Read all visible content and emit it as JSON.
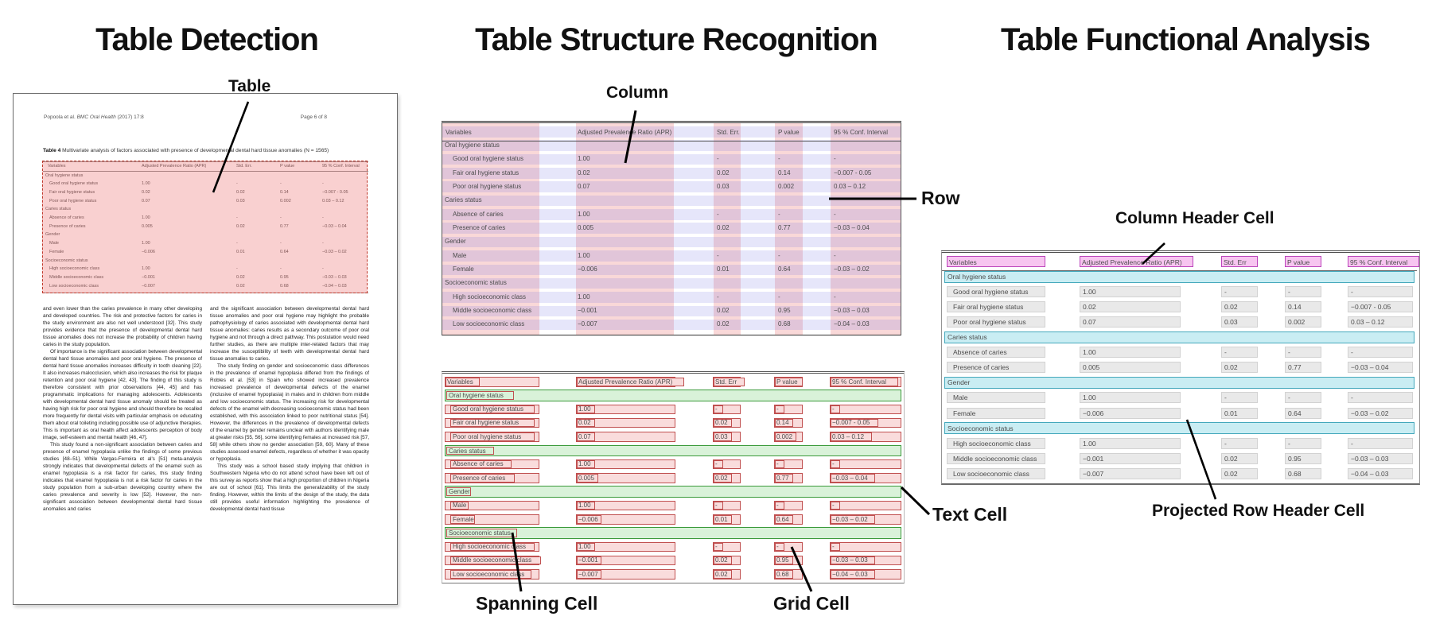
{
  "titles": {
    "panel1": "Table Detection",
    "panel2": "Table Structure Recognition",
    "panel3": "Table Functional Analysis"
  },
  "annotations": {
    "table": "Table",
    "column": "Column",
    "row": "Row",
    "spanning_cell": "Spanning Cell",
    "grid_cell": "Grid Cell",
    "text_cell": "Text Cell",
    "column_header_cell": "Column Header Cell",
    "projected_row_header_cell": "Projected Row Header Cell"
  },
  "document": {
    "header_author": "Popoola et al. ",
    "header_journal": "BMC Oral Health",
    "header_issue": " (2017) 17:8",
    "header_page": "Page 6 of 8",
    "caption_label": "Table 4",
    "caption_text": " Multivariate analysis of factors associated with presence of developmental dental hard tissue anomalies (N = 1565)",
    "body_left": [
      "and even lower than the caries prevalence in many other developing and developed countries. The risk and protective factors for caries in the study environment are also not well understood [32]. This study provides evidence that the presence of developmental dental hard tissue anomalies does not increase the probability of children having caries in the study population.",
      "Of importance is the significant association between developmental dental hard tissue anomalies and poor oral hygiene. The presence of dental hard tissue anomalies increases difficulty in tooth cleaning [22]. It also increases malocclusion, which also increases the risk for plaque retention and poor oral hygiene [42, 43]. The finding of this study is therefore consistent with prior observations [44, 45] and has programmatic implications for managing adolescents. Adolescents with developmental dental hard tissue anomaly should be treated as having high risk for poor oral hygiene and should therefore be recalled more frequently for dental visits with particular emphasis on educating them about oral toileting including possible use of adjunctive therapies. This is important as oral health affect adolescents perception of body image, self-esteem and mental health [46, 47].",
      "This study found a non-significant association between caries and presence of enamel hypoplasia unlike the findings of some previous studies [48–51]. While Vargas-Ferreira et al's [51] meta-analysis strongly indicates that developmental defects of the enamel such as enamel hypoplasia is a risk factor for caries, this study finding indicates that enamel hypoplasia is not a risk factor for caries in the study population from a sub-urban developing country where the caries prevalence and severity is low [52]. However, the non-significant association between developmental dental hard tissue anomalies and caries"
    ],
    "body_right": [
      "and the significant association between developmental dental hard tissue anomalies and poor oral hygiene may highlight the probable pathophysiology of caries associated with developmental dental hard tissue anomalies: caries results as a secondary outcome of poor oral hygiene and not through a direct pathway. This postulation would need further studies, as there are multiple inter-related factors that may increase the susceptibility of teeth with developmental dental hard tissue anomalies to caries.",
      "The study finding on gender and socioeconomic class differences in the prevalence of enamel hypoplasia differed from the findings of Robles et al. [53] in Spain who showed increased prevalence increased prevalence of developmental defects of the enamel (inclusive of enamel hypoplasia) in males and in children from middle and low socioeconomic status. The increasing risk for developmental defects of the enamel with decreasing socioeconomic status had been established, with this association linked to poor nutritional status [54]. However, the differences in the prevalence of developmental defects of the enamel by gender remains unclear with authors identifying male at greater risks [55, 56], some identifying females at increased risk [57, 58] while others show no gender association [59, 60]. Many of these studies assessed enamel defects, regardless of whether it was opacity or hypoplasia.",
      "This study was a school based study implying that children in Southwestern Nigeria who do not attend school have been left out of this survey as reports show that a high proportion of children in Nigeria are out of school [61]. This limits the generalizability of the study finding. However, within the limits of the design of the study, the data still provides useful information highlighting the prevalence of developmental dental hard tissue"
    ]
  },
  "table": {
    "headers": [
      "Variables",
      "Adjusted Prevalence Ratio (APR)",
      "Std. Err.",
      "P value",
      "95 % Conf. Interval"
    ],
    "headers_short": [
      "Variables",
      "Adjusted Prevalence Ratio (APR)",
      "Std. Err",
      "P value",
      "95 % Conf. Interval"
    ],
    "rows": [
      {
        "label": "Oral hygiene status",
        "section": true,
        "values": [
          "",
          "",
          "",
          ""
        ]
      },
      {
        "label": "Good oral hygiene status",
        "section": false,
        "values": [
          "1.00",
          "-",
          "-",
          "-"
        ]
      },
      {
        "label": "Fair oral hygiene status",
        "section": false,
        "values": [
          "0.02",
          "0.02",
          "0.14",
          "−0.007 - 0.05"
        ]
      },
      {
        "label": "Poor oral hygiene status",
        "section": false,
        "values": [
          "0.07",
          "0.03",
          "0.002",
          "0.03 – 0.12"
        ]
      },
      {
        "label": "Caries status",
        "section": true,
        "values": [
          "",
          "",
          "",
          ""
        ]
      },
      {
        "label": "Absence of caries",
        "section": false,
        "values": [
          "1.00",
          "-",
          "-",
          "-"
        ]
      },
      {
        "label": "Presence of caries",
        "section": false,
        "values": [
          "0.005",
          "0.02",
          "0.77",
          "−0.03 – 0.04"
        ]
      },
      {
        "label": "Gender",
        "section": true,
        "values": [
          "",
          "",
          "",
          ""
        ]
      },
      {
        "label": "Male",
        "section": false,
        "values": [
          "1.00",
          "-",
          "-",
          "-"
        ]
      },
      {
        "label": "Female",
        "section": false,
        "values": [
          "−0.006",
          "0.01",
          "0.64",
          "−0.03 – 0.02"
        ]
      },
      {
        "label": "Socioeconomic status",
        "section": true,
        "values": [
          "",
          "",
          "",
          ""
        ]
      },
      {
        "label": "High socioeconomic class",
        "section": false,
        "values": [
          "1.00",
          "-",
          "-",
          "-"
        ]
      },
      {
        "label": "Middle socioeconomic class",
        "section": false,
        "values": [
          "−0.001",
          "0.02",
          "0.95",
          "−0.03 – 0.03"
        ]
      },
      {
        "label": "Low socioeconomic class",
        "section": false,
        "values": [
          "−0.007",
          "0.02",
          "0.68",
          "−0.04 – 0.03"
        ]
      }
    ]
  },
  "colors": {
    "detection_fill": "rgba(238,112,112,0.33)",
    "detection_border": "#c0392b",
    "row_band": "rgba(104,104,226,0.17)",
    "column_band": "rgba(225,72,72,0.21)",
    "grid_cell_fill": "#f9dcdc",
    "grid_cell_border": "#c05050",
    "spanning_fill": "#d9f2d9",
    "spanning_border": "#3a9a3a",
    "header_cell_fill": "#f7c5f0",
    "header_cell_border": "#bb44bb",
    "proj_row_fill": "#c9edf3",
    "proj_row_border": "#44a8bc",
    "func_cell_fill": "#e9e9e9",
    "func_cell_border": "#d2d2d2",
    "rule_color": "#8a8a8a"
  }
}
